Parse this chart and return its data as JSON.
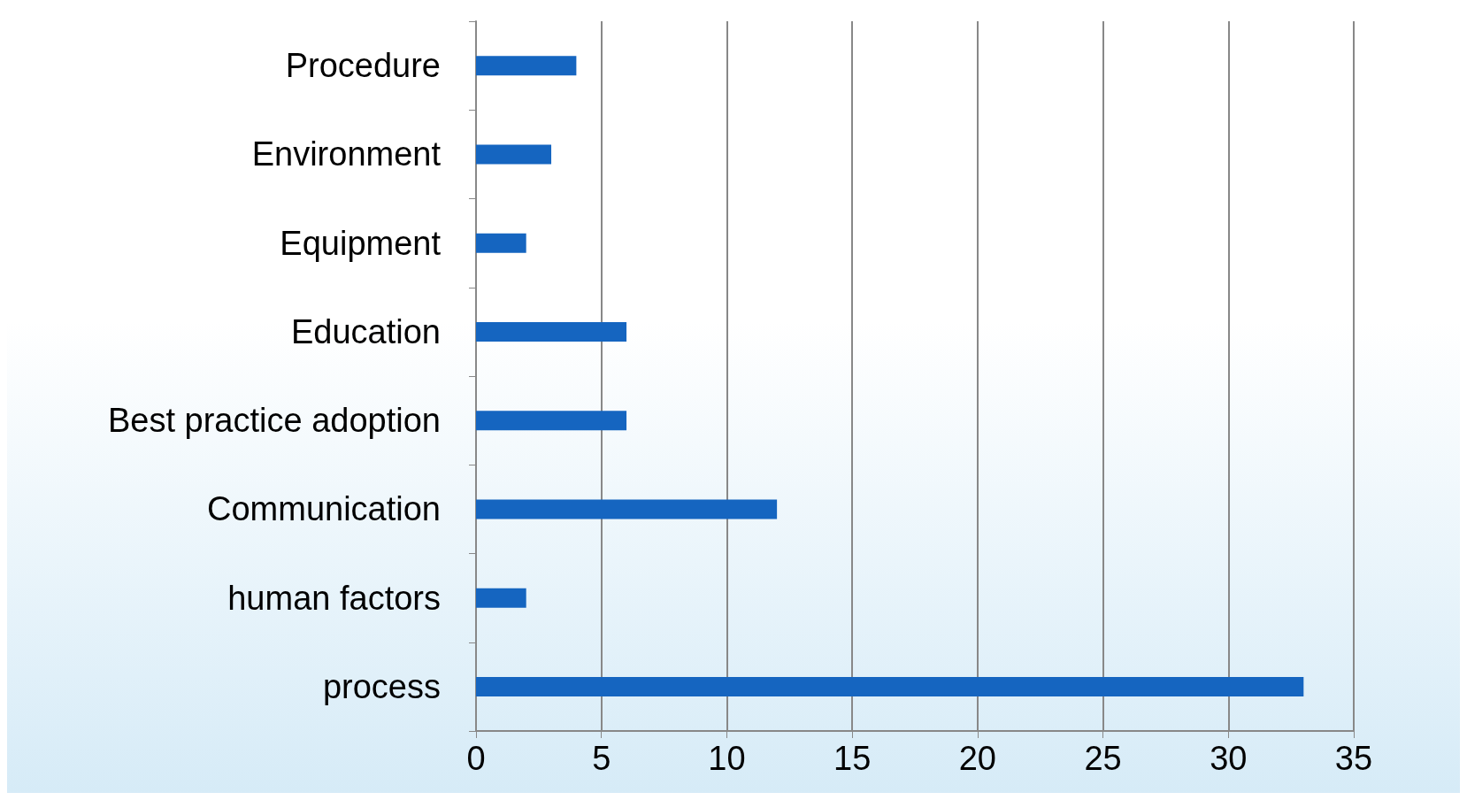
{
  "chart_data": {
    "type": "bar",
    "orientation": "horizontal",
    "categories": [
      "Procedure",
      "Environment",
      "Equipment",
      "Education",
      "Best practice adoption",
      "Communication",
      "human factors",
      "process"
    ],
    "values": [
      4,
      3,
      2,
      6,
      6,
      12,
      2,
      33
    ],
    "color": "#1565c0",
    "xlim": [
      0,
      35
    ],
    "xticks": [
      0,
      5,
      10,
      15,
      20,
      25,
      30,
      35
    ],
    "grid": "x"
  }
}
